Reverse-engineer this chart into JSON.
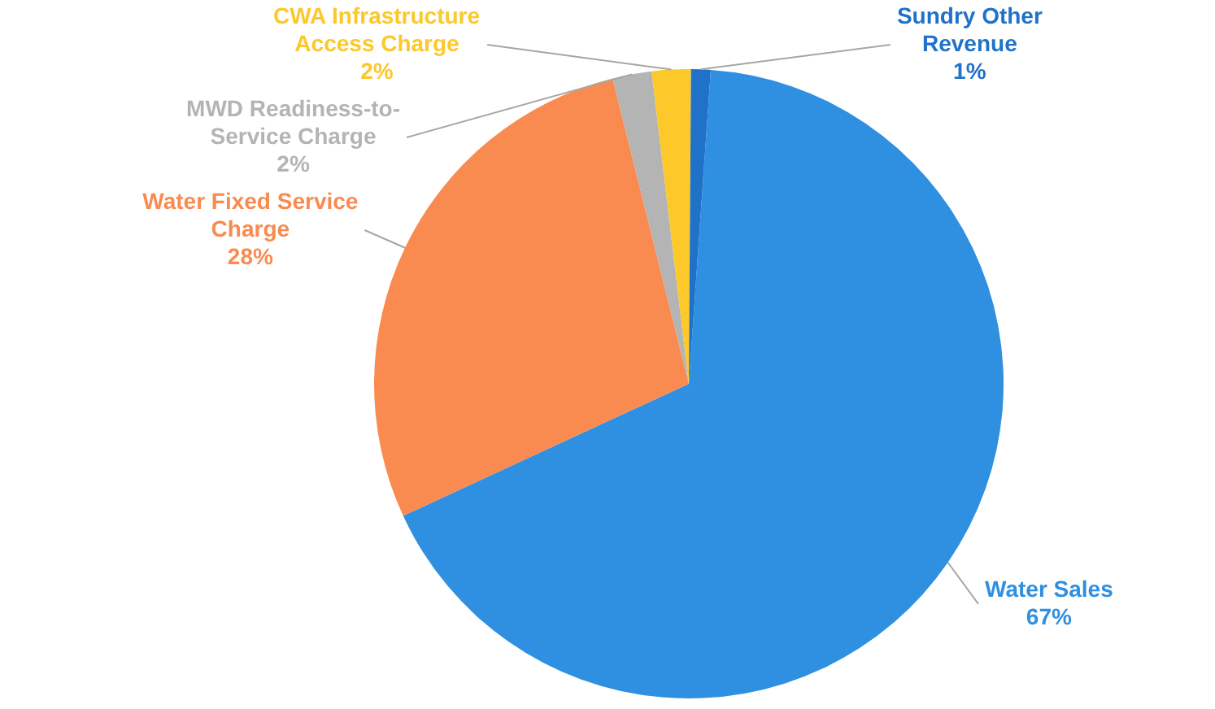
{
  "chart_data": {
    "type": "pie",
    "categories": [
      "Water Sales",
      "Water Fixed Service Charge",
      "MWD Readiness-to-Service Charge",
      "CWA Infrastructure Access Charge",
      "Sundry Other Revenue"
    ],
    "values": [
      67,
      28,
      2,
      2,
      1
    ],
    "colors": [
      "#2f8fe0",
      "#f98b50",
      "#b4b4b4",
      "#fcc82a",
      "#1f72c8"
    ],
    "value_labels": [
      "67%",
      "28%",
      "2%",
      "2%",
      "1%"
    ]
  }
}
